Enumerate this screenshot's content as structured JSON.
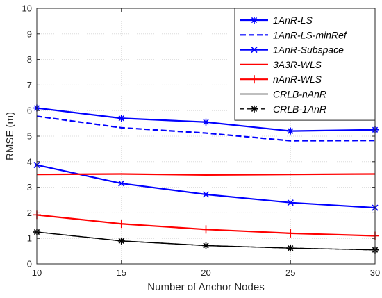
{
  "chart_data": {
    "type": "line",
    "xlabel": "Number of Anchor Nodes",
    "ylabel": "RMSE (m)",
    "xlim": [
      10,
      30
    ],
    "ylim": [
      0,
      10
    ],
    "xticks": [
      10,
      15,
      20,
      25,
      30
    ],
    "yticks": [
      0,
      1,
      2,
      3,
      4,
      5,
      6,
      7,
      8,
      9,
      10
    ],
    "grid": true,
    "legend_position": "top-right",
    "x": [
      10,
      15,
      20,
      25,
      30
    ],
    "series": [
      {
        "name": "1AnR-LS",
        "values": [
          6.1,
          5.7,
          5.55,
          5.2,
          5.25
        ],
        "color": "#0000ff",
        "line": "solid",
        "marker": "asterisk"
      },
      {
        "name": "1AnR-LS-minRef",
        "values": [
          5.78,
          5.33,
          5.12,
          4.82,
          4.83
        ],
        "color": "#0000ff",
        "line": "dashed",
        "marker": "none"
      },
      {
        "name": "1AnR-Subspace",
        "values": [
          3.87,
          3.15,
          2.72,
          2.4,
          2.2
        ],
        "color": "#0000ff",
        "line": "solid",
        "marker": "x"
      },
      {
        "name": "3A3R-WLS",
        "values": [
          3.5,
          3.52,
          3.48,
          3.5,
          3.52
        ],
        "color": "#ff0000",
        "line": "solid",
        "marker": "none"
      },
      {
        "name": "nAnR-WLS",
        "values": [
          1.92,
          1.57,
          1.35,
          1.2,
          1.1
        ],
        "color": "#ff0000",
        "line": "solid",
        "marker": "plus"
      },
      {
        "name": "CRLB-nAnR",
        "values": [
          1.25,
          0.9,
          0.72,
          0.62,
          0.55
        ],
        "color": "#000000",
        "line": "solid",
        "marker": "none"
      },
      {
        "name": "CRLB-1AnR",
        "values": [
          1.25,
          0.9,
          0.72,
          0.62,
          0.55
        ],
        "color": "#000000",
        "line": "dashed",
        "marker": "asterisk"
      }
    ]
  }
}
